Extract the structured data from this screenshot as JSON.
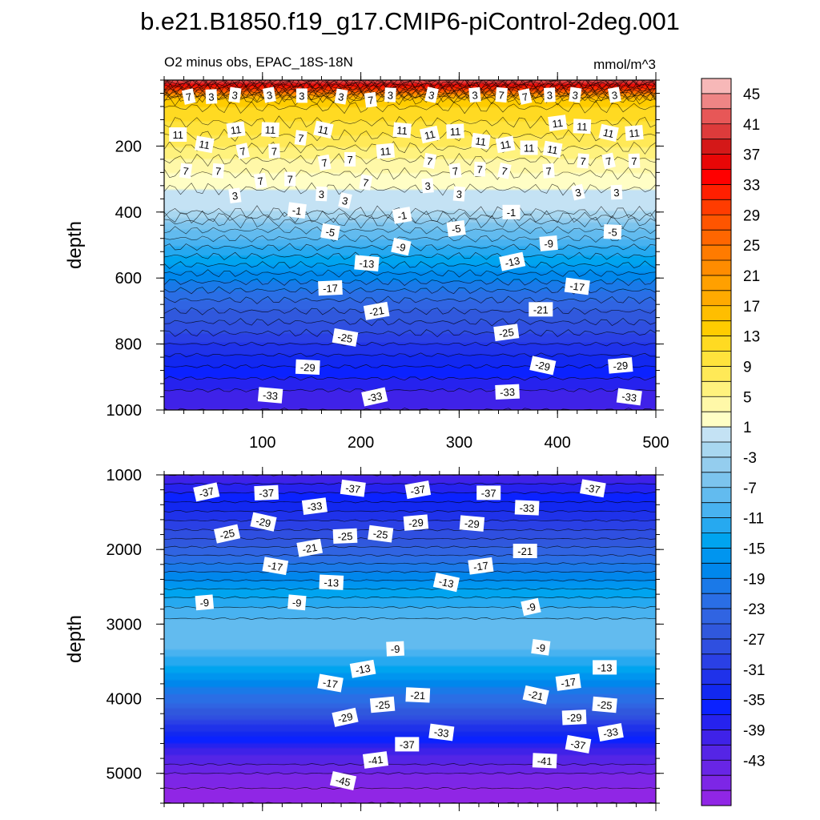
{
  "chart_data": [
    {
      "type": "contour",
      "title": "b.e21.B1850.f19_g17.CMIP6-piControl-2deg.001",
      "left_string": "O2 minus obs, EPAC_18S-18N",
      "right_string": "mmol/m^3",
      "xlabel": "",
      "ylabel": "depth",
      "xlim": [
        0,
        500
      ],
      "ylim": [
        0,
        1000
      ],
      "y_reversed": true,
      "x_ticks": [
        "100",
        "200",
        "300",
        "400",
        "500"
      ],
      "y_ticks": [
        "200",
        "400",
        "600",
        "800",
        "1000"
      ],
      "profile": [
        [
          0,
          45
        ],
        [
          60,
          16
        ],
        [
          150,
          12
        ],
        [
          260,
          6
        ],
        [
          330,
          3
        ],
        [
          400,
          1
        ],
        [
          430,
          -3
        ],
        [
          480,
          -7
        ],
        [
          560,
          -13
        ],
        [
          650,
          -20
        ],
        [
          750,
          -26
        ],
        [
          850,
          -32
        ],
        [
          940,
          -37
        ],
        [
          1000,
          -39
        ]
      ],
      "contour_labels": [
        {
          "x": 25,
          "y": 50,
          "text": "7"
        },
        {
          "x": 48,
          "y": 50,
          "text": "3"
        },
        {
          "x": 72,
          "y": 45,
          "text": "3"
        },
        {
          "x": 107,
          "y": 45,
          "text": "3"
        },
        {
          "x": 140,
          "y": 47,
          "text": "3"
        },
        {
          "x": 180,
          "y": 50,
          "text": "3"
        },
        {
          "x": 210,
          "y": 60,
          "text": "7"
        },
        {
          "x": 230,
          "y": 45,
          "text": "3"
        },
        {
          "x": 272,
          "y": 45,
          "text": "3"
        },
        {
          "x": 316,
          "y": 45,
          "text": "3"
        },
        {
          "x": 343,
          "y": 45,
          "text": "7"
        },
        {
          "x": 367,
          "y": 50,
          "text": "7"
        },
        {
          "x": 392,
          "y": 45,
          "text": "3"
        },
        {
          "x": 418,
          "y": 45,
          "text": "3"
        },
        {
          "x": 458,
          "y": 45,
          "text": "3"
        },
        {
          "x": 14,
          "y": 165,
          "text": "11"
        },
        {
          "x": 41,
          "y": 195,
          "text": "11"
        },
        {
          "x": 73,
          "y": 150,
          "text": "11"
        },
        {
          "x": 108,
          "y": 150,
          "text": "11"
        },
        {
          "x": 162,
          "y": 150,
          "text": "11"
        },
        {
          "x": 225,
          "y": 215,
          "text": "11"
        },
        {
          "x": 242,
          "y": 152,
          "text": "11"
        },
        {
          "x": 270,
          "y": 165,
          "text": "11"
        },
        {
          "x": 296,
          "y": 155,
          "text": "11"
        },
        {
          "x": 322,
          "y": 185,
          "text": "11"
        },
        {
          "x": 347,
          "y": 195,
          "text": "11"
        },
        {
          "x": 371,
          "y": 205,
          "text": "11"
        },
        {
          "x": 395,
          "y": 210,
          "text": "11"
        },
        {
          "x": 400,
          "y": 130,
          "text": "11"
        },
        {
          "x": 425,
          "y": 140,
          "text": "11"
        },
        {
          "x": 452,
          "y": 160,
          "text": "11"
        },
        {
          "x": 478,
          "y": 160,
          "text": "11"
        },
        {
          "x": 55,
          "y": 275,
          "text": "7"
        },
        {
          "x": 80,
          "y": 215,
          "text": "7"
        },
        {
          "x": 112,
          "y": 215,
          "text": "7"
        },
        {
          "x": 139,
          "y": 175,
          "text": "7"
        },
        {
          "x": 163,
          "y": 250,
          "text": "7"
        },
        {
          "x": 189,
          "y": 240,
          "text": "7"
        },
        {
          "x": 270,
          "y": 245,
          "text": "7"
        },
        {
          "x": 296,
          "y": 275,
          "text": "7"
        },
        {
          "x": 321,
          "y": 270,
          "text": "7"
        },
        {
          "x": 346,
          "y": 275,
          "text": "7"
        },
        {
          "x": 391,
          "y": 275,
          "text": "7"
        },
        {
          "x": 426,
          "y": 245,
          "text": "7"
        },
        {
          "x": 452,
          "y": 245,
          "text": "7"
        },
        {
          "x": 478,
          "y": 245,
          "text": "7"
        },
        {
          "x": 22,
          "y": 275,
          "text": "7"
        },
        {
          "x": 98,
          "y": 305,
          "text": "7"
        },
        {
          "x": 128,
          "y": 300,
          "text": "7"
        },
        {
          "x": 205,
          "y": 310,
          "text": "7"
        },
        {
          "x": 72,
          "y": 350,
          "text": "3"
        },
        {
          "x": 160,
          "y": 345,
          "text": "3"
        },
        {
          "x": 184,
          "y": 365,
          "text": "3"
        },
        {
          "x": 268,
          "y": 320,
          "text": "3"
        },
        {
          "x": 300,
          "y": 345,
          "text": "3"
        },
        {
          "x": 421,
          "y": 340,
          "text": "3"
        },
        {
          "x": 460,
          "y": 340,
          "text": "3"
        },
        {
          "x": 135,
          "y": 395,
          "text": "-1"
        },
        {
          "x": 242,
          "y": 410,
          "text": "-1"
        },
        {
          "x": 353,
          "y": 400,
          "text": "-1"
        },
        {
          "x": 169,
          "y": 460,
          "text": "-5"
        },
        {
          "x": 297,
          "y": 450,
          "text": "-5"
        },
        {
          "x": 456,
          "y": 460,
          "text": "-5"
        },
        {
          "x": 241,
          "y": 505,
          "text": "-9"
        },
        {
          "x": 391,
          "y": 495,
          "text": "-9"
        },
        {
          "x": 206,
          "y": 555,
          "text": "-13"
        },
        {
          "x": 354,
          "y": 550,
          "text": "-13"
        },
        {
          "x": 169,
          "y": 630,
          "text": "-17"
        },
        {
          "x": 420,
          "y": 625,
          "text": "-17"
        },
        {
          "x": 216,
          "y": 700,
          "text": "-21"
        },
        {
          "x": 383,
          "y": 695,
          "text": "-21"
        },
        {
          "x": 184,
          "y": 780,
          "text": "-25"
        },
        {
          "x": 348,
          "y": 765,
          "text": "-25"
        },
        {
          "x": 146,
          "y": 870,
          "text": "-29"
        },
        {
          "x": 385,
          "y": 865,
          "text": "-29"
        },
        {
          "x": 464,
          "y": 865,
          "text": "-29"
        },
        {
          "x": 108,
          "y": 955,
          "text": "-33"
        },
        {
          "x": 214,
          "y": 960,
          "text": "-33"
        },
        {
          "x": 349,
          "y": 945,
          "text": "-33"
        },
        {
          "x": 473,
          "y": 960,
          "text": "-33"
        }
      ]
    },
    {
      "type": "contour",
      "title": "",
      "xlabel": "",
      "ylabel": "depth",
      "xlim": [
        0,
        500
      ],
      "ylim": [
        1000,
        5400
      ],
      "y_reversed": true,
      "x_ticks": [],
      "y_ticks": [
        "1000",
        "2000",
        "3000",
        "4000",
        "5000"
      ],
      "profile": [
        [
          1000,
          -39
        ],
        [
          1300,
          -34
        ],
        [
          1800,
          -26
        ],
        [
          2300,
          -17
        ],
        [
          2700,
          -10
        ],
        [
          3000,
          -6
        ],
        [
          3300,
          -6
        ],
        [
          3500,
          -10
        ],
        [
          3800,
          -16
        ],
        [
          4100,
          -22
        ],
        [
          4400,
          -30
        ],
        [
          4700,
          -38
        ],
        [
          5000,
          -43
        ],
        [
          5400,
          -47
        ]
      ],
      "contour_labels": [
        {
          "x": 43,
          "y": 1230,
          "text": "-37"
        },
        {
          "x": 104,
          "y": 1240,
          "text": "-37"
        },
        {
          "x": 192,
          "y": 1180,
          "text": "-37"
        },
        {
          "x": 258,
          "y": 1200,
          "text": "-37"
        },
        {
          "x": 330,
          "y": 1240,
          "text": "-37"
        },
        {
          "x": 436,
          "y": 1180,
          "text": "-37"
        },
        {
          "x": 153,
          "y": 1420,
          "text": "-33"
        },
        {
          "x": 369,
          "y": 1440,
          "text": "-33"
        },
        {
          "x": 101,
          "y": 1630,
          "text": "-29"
        },
        {
          "x": 256,
          "y": 1640,
          "text": "-29"
        },
        {
          "x": 313,
          "y": 1650,
          "text": "-29"
        },
        {
          "x": 64,
          "y": 1790,
          "text": "-25"
        },
        {
          "x": 184,
          "y": 1820,
          "text": "-25"
        },
        {
          "x": 220,
          "y": 1790,
          "text": "-25"
        },
        {
          "x": 148,
          "y": 1980,
          "text": "-21"
        },
        {
          "x": 367,
          "y": 2020,
          "text": "-21"
        },
        {
          "x": 113,
          "y": 2220,
          "text": "-17"
        },
        {
          "x": 322,
          "y": 2220,
          "text": "-17"
        },
        {
          "x": 170,
          "y": 2440,
          "text": "-13"
        },
        {
          "x": 287,
          "y": 2440,
          "text": "-13"
        },
        {
          "x": 41,
          "y": 2710,
          "text": "-9"
        },
        {
          "x": 135,
          "y": 2710,
          "text": "-9"
        },
        {
          "x": 373,
          "y": 2770,
          "text": "-9"
        },
        {
          "x": 235,
          "y": 3330,
          "text": "-9"
        },
        {
          "x": 383,
          "y": 3310,
          "text": "-9"
        },
        {
          "x": 202,
          "y": 3600,
          "text": "-13"
        },
        {
          "x": 448,
          "y": 3580,
          "text": "-13"
        },
        {
          "x": 169,
          "y": 3790,
          "text": "-17"
        },
        {
          "x": 411,
          "y": 3780,
          "text": "-17"
        },
        {
          "x": 258,
          "y": 3950,
          "text": "-21"
        },
        {
          "x": 378,
          "y": 3950,
          "text": "-21"
        },
        {
          "x": 222,
          "y": 4080,
          "text": "-25"
        },
        {
          "x": 448,
          "y": 4080,
          "text": "-25"
        },
        {
          "x": 184,
          "y": 4250,
          "text": "-29"
        },
        {
          "x": 417,
          "y": 4250,
          "text": "-29"
        },
        {
          "x": 282,
          "y": 4450,
          "text": "-33"
        },
        {
          "x": 454,
          "y": 4450,
          "text": "-33"
        },
        {
          "x": 247,
          "y": 4610,
          "text": "-37"
        },
        {
          "x": 421,
          "y": 4610,
          "text": "-37"
        },
        {
          "x": 215,
          "y": 4820,
          "text": "-41"
        },
        {
          "x": 387,
          "y": 4830,
          "text": "-41"
        },
        {
          "x": 182,
          "y": 5100,
          "text": "-45"
        }
      ]
    },
    {
      "type": "colorbar",
      "tick_labels": [
        "45",
        "41",
        "37",
        "33",
        "29",
        "25",
        "21",
        "17",
        "13",
        "9",
        "5",
        "1",
        "-3",
        "-7",
        "-11",
        "-15",
        "-19",
        "-23",
        "-27",
        "-31",
        "-35",
        "-39",
        "-43"
      ],
      "colors": [
        "#f7b8b8",
        "#ef8585",
        "#e75757",
        "#dd3b3b",
        "#d41818",
        "#e80606",
        "#ff0000",
        "#ff1f00",
        "#ff3c00",
        "#ff5500",
        "#ff6600",
        "#ff7b00",
        "#ff8c00",
        "#ffa000",
        "#ffaa00",
        "#ffbe00",
        "#ffcc00",
        "#ffda22",
        "#ffe33c",
        "#ffe957",
        "#fff27d",
        "#fff8a8",
        "#fffec5",
        "#c4e2f4",
        "#a8d7f0",
        "#94cdee",
        "#7cc4ee",
        "#62bbef",
        "#48b2f0",
        "#26a9f0",
        "#00a4ef",
        "#0095ef",
        "#0087ec",
        "#1a79e8",
        "#2a6ee5",
        "#3064e2",
        "#3058dd",
        "#2f4fe0",
        "#2a40e5",
        "#1f32ea",
        "#1228f0",
        "#0b22ff",
        "#2622ee",
        "#3f22e8",
        "#5525e6",
        "#6825e6",
        "#7d26e6",
        "#9026e5"
      ]
    }
  ]
}
